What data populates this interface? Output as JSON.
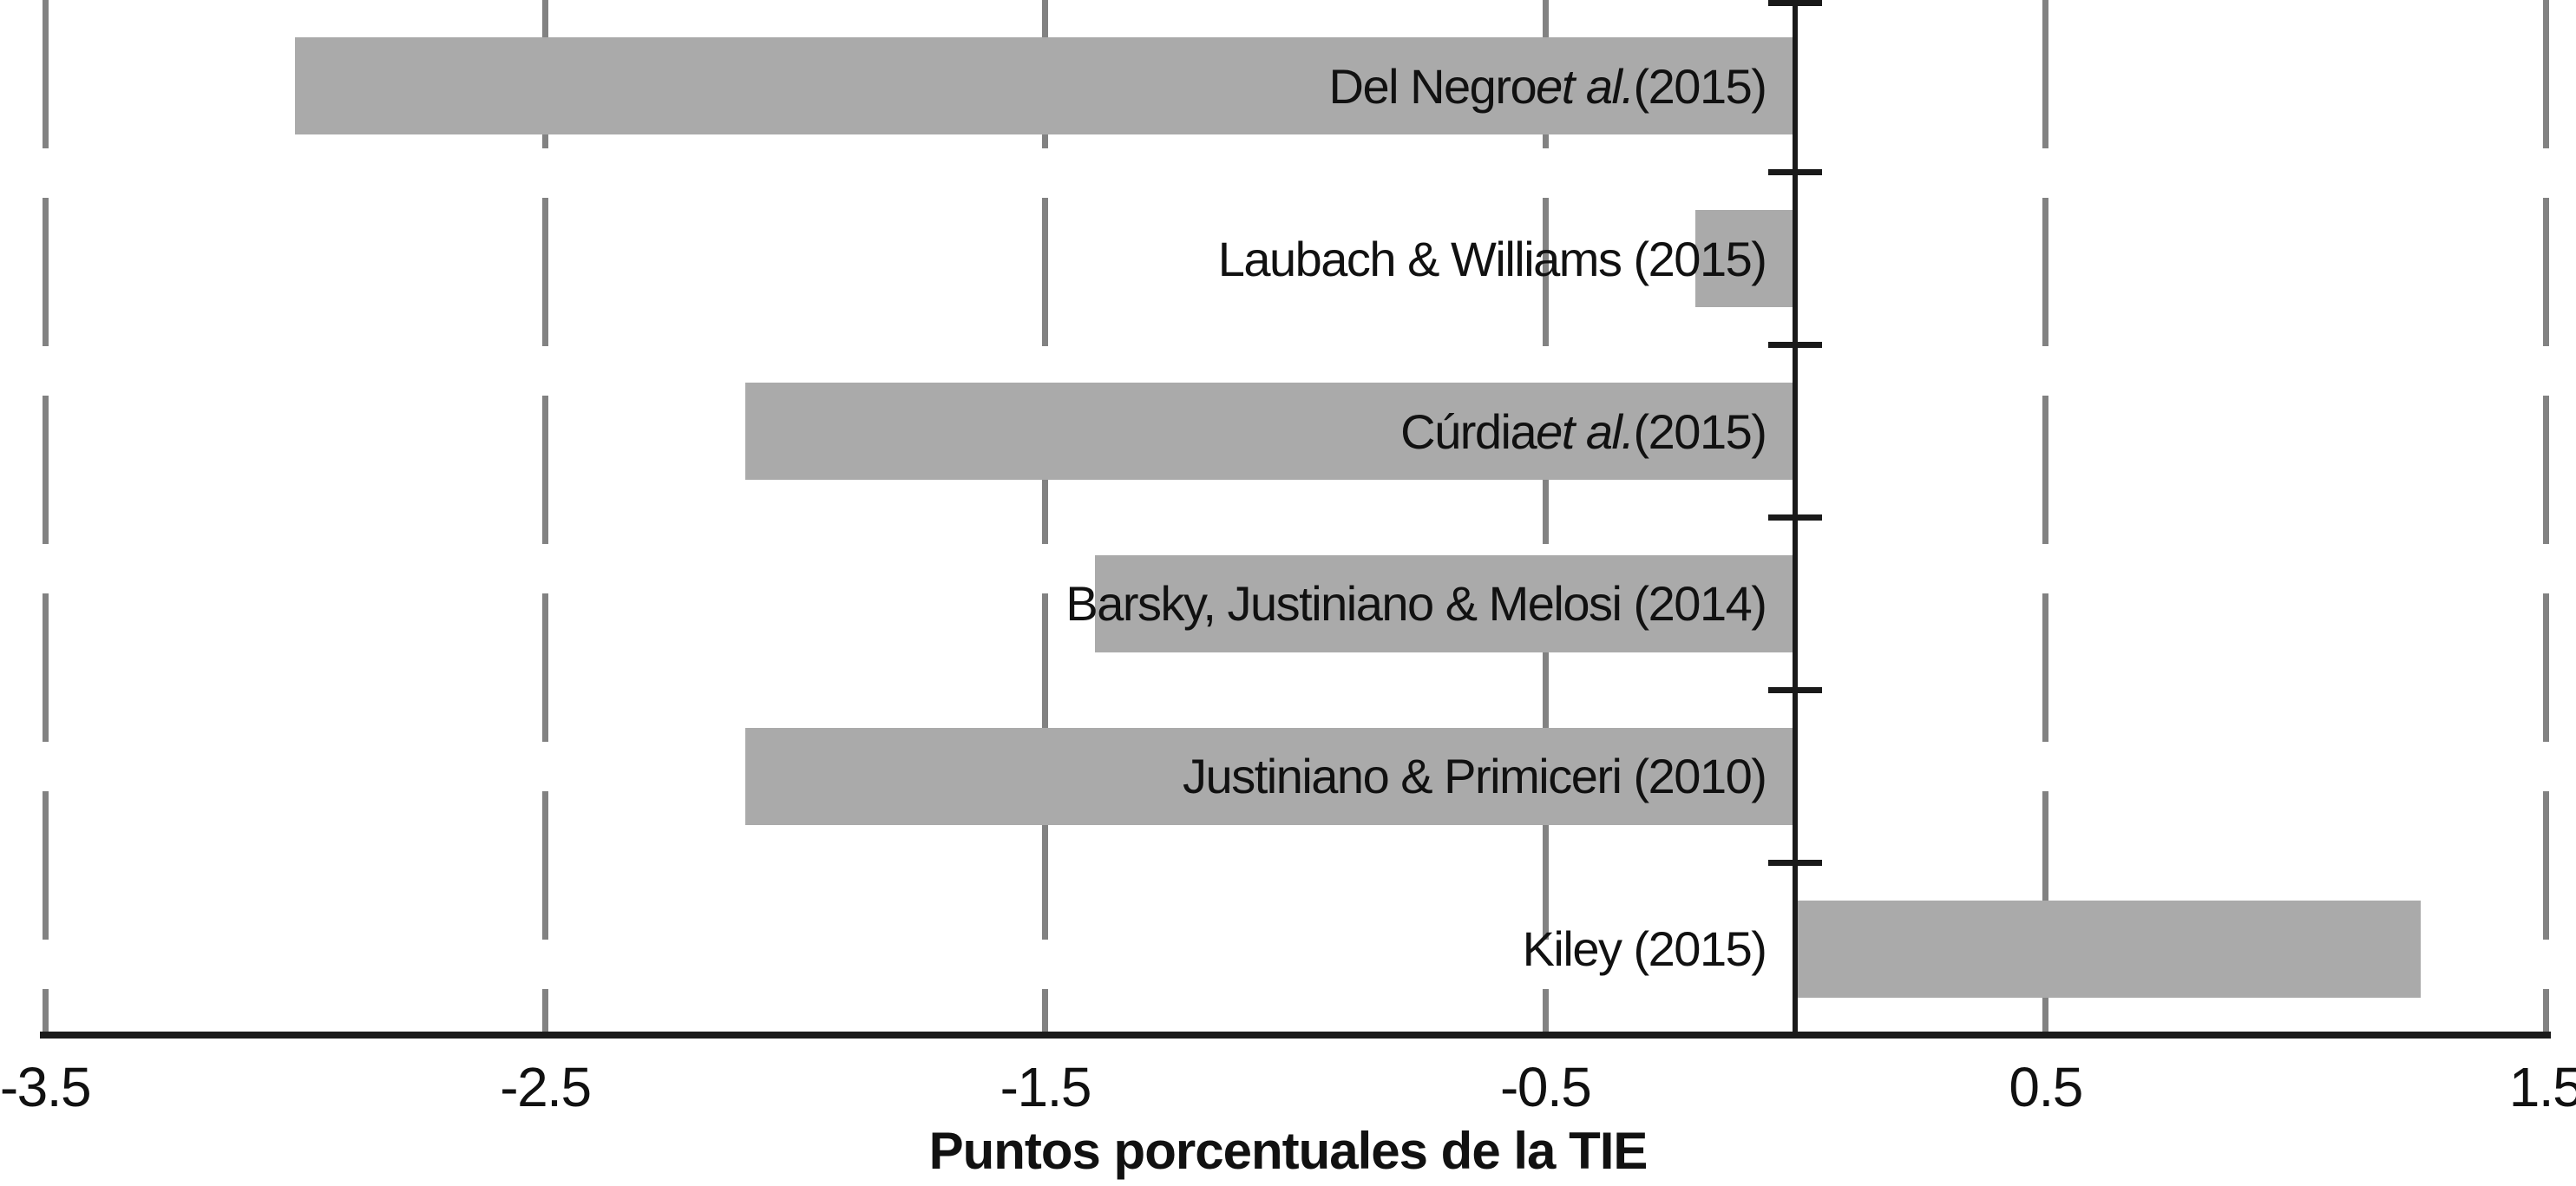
{
  "chart_data": {
    "type": "bar",
    "orientation": "horizontal",
    "title": "",
    "xlabel": "Puntos porcentuales de la TIE",
    "ylabel": "",
    "xlim": [
      -3.5,
      1.5
    ],
    "grid": "dashed-vertical-gridlines",
    "legend": "none",
    "x_ticks": [
      {
        "value": -3.5,
        "label": "-3.5"
      },
      {
        "value": -2.5,
        "label": "-2.5"
      },
      {
        "value": -1.5,
        "label": "-1.5"
      },
      {
        "value": -0.5,
        "label": "-0.5"
      },
      {
        "value": 0.5,
        "label": "0.5"
      },
      {
        "value": 1.5,
        "label": "1.5"
      }
    ],
    "bars": [
      {
        "label": "Del Negro et al. (2015)",
        "label_parts": [
          {
            "text": "Del Negro "
          },
          {
            "text": "et al.",
            "italic": true
          },
          {
            "text": " (2015)"
          }
        ],
        "value": -3.0
      },
      {
        "label": "Laubach & Williams (2015)",
        "label_parts": [
          {
            "text": "Laubach & Williams (2015)"
          }
        ],
        "value": -0.2
      },
      {
        "label": "Cúrdia et al. (2015)",
        "label_parts": [
          {
            "text": "Cúrdia "
          },
          {
            "text": "et al.",
            "italic": true
          },
          {
            "text": " (2015)"
          }
        ],
        "value": -2.1
      },
      {
        "label": "Barsky, Justiniano & Melosi (2014)",
        "label_parts": [
          {
            "text": "Barsky, Justiniano & Melosi (2014)"
          }
        ],
        "value": -1.4
      },
      {
        "label": "Justiniano & Primiceri (2010)",
        "label_parts": [
          {
            "text": "Justiniano & Primiceri (2010)"
          }
        ],
        "value": -2.1
      },
      {
        "label": "Kiley (2015)",
        "label_parts": [
          {
            "text": "Kiley (2015)"
          }
        ],
        "value": 1.25
      }
    ],
    "colors": {
      "bar": "#aaaaaa",
      "gridline": "#828282",
      "axis": "#1a1a1a",
      "text": "#111111"
    }
  }
}
